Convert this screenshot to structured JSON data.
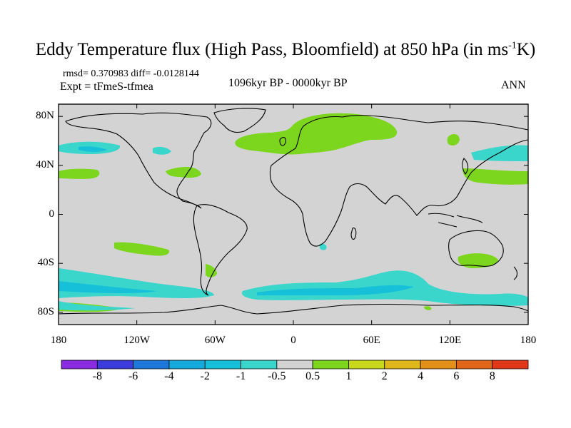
{
  "title_main": "Eddy Temperature flux (High Pass, Bloomfield) at 850 hPa (in ms",
  "title_sup": "-1",
  "title_tail": "K)",
  "stats_line": "rmsd= 0.370983 diff= -0.0128144",
  "expt_line": "Expt = tFmeS-tfmea",
  "subtitle": "1096kyr BP - 0000kyr BP",
  "season": "ANN",
  "axes": {
    "y_ticks": [
      {
        "label": "80N",
        "lat": 80
      },
      {
        "label": "40N",
        "lat": 40
      },
      {
        "label": "0",
        "lat": 0
      },
      {
        "label": "40S",
        "lat": -40
      },
      {
        "label": "80S",
        "lat": -80
      }
    ],
    "x_ticks": [
      {
        "label": "180",
        "lon": -180
      },
      {
        "label": "120W",
        "lon": -120
      },
      {
        "label": "60W",
        "lon": -60
      },
      {
        "label": "0",
        "lon": 0
      },
      {
        "label": "60E",
        "lon": 60
      },
      {
        "label": "120E",
        "lon": 120
      },
      {
        "label": "180",
        "lon": 180
      }
    ],
    "lon_range": [
      -180,
      180
    ],
    "lat_range": [
      -90,
      90
    ]
  },
  "colorbar": {
    "colors": [
      "#8a2be2",
      "#3c3cdc",
      "#1e78dc",
      "#14aadc",
      "#16c0d8",
      "#3ad6cc",
      "#d3d3d3",
      "#7dd61e",
      "#c8d81a",
      "#e0b81a",
      "#e29018",
      "#e2661a",
      "#e2381a"
    ],
    "labels": [
      "-8",
      "-6",
      "-4",
      "-2",
      "-1",
      "-0.5",
      "0.5",
      "1",
      "2",
      "4",
      "6",
      "8"
    ]
  },
  "colors": {
    "background_field": "#d3d3d3",
    "positive_fill": "#7dd61e",
    "negative_fill": "#2ad0d4",
    "negative_strong": "#16b8e0",
    "coast": "#000000"
  }
}
